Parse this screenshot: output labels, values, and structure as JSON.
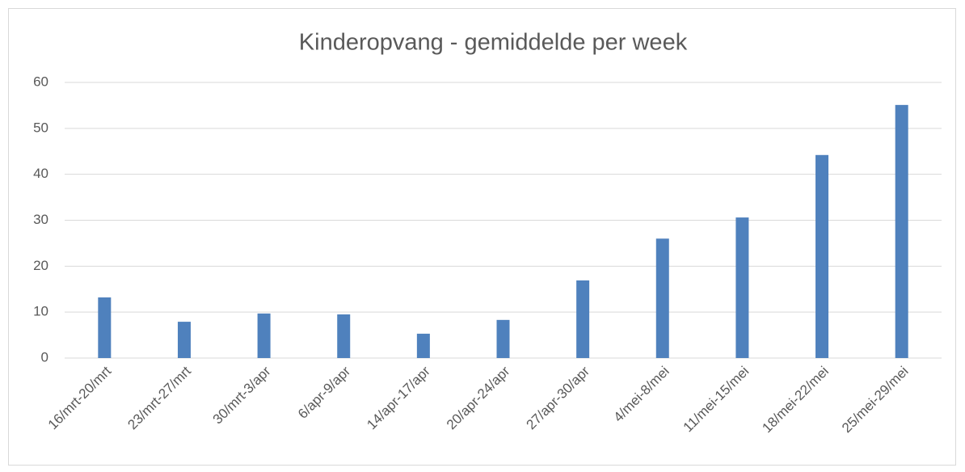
{
  "chart_data": {
    "type": "bar",
    "title": "Kinderopvang - gemiddelde per week",
    "categories": [
      "16/mrt-20/mrt",
      "23/mrt-27/mrt",
      "30/mrt-3/apr",
      "6/apr-9/apr",
      "14/apr-17/apr",
      "20/apr-24/apr",
      "27/apr-30/apr",
      "4/mei-8/mei",
      "11/mei-15/mei",
      "18/mei-22/mei",
      "25/mei-29/mei"
    ],
    "values": [
      13.2,
      7.9,
      9.7,
      9.5,
      5.3,
      8.3,
      16.9,
      26,
      30.6,
      44.2,
      55.1
    ],
    "color": "#4f81bd",
    "ylim": [
      0,
      60
    ],
    "yticks": [
      0,
      10,
      20,
      30,
      40,
      50,
      60
    ],
    "grid": true
  }
}
